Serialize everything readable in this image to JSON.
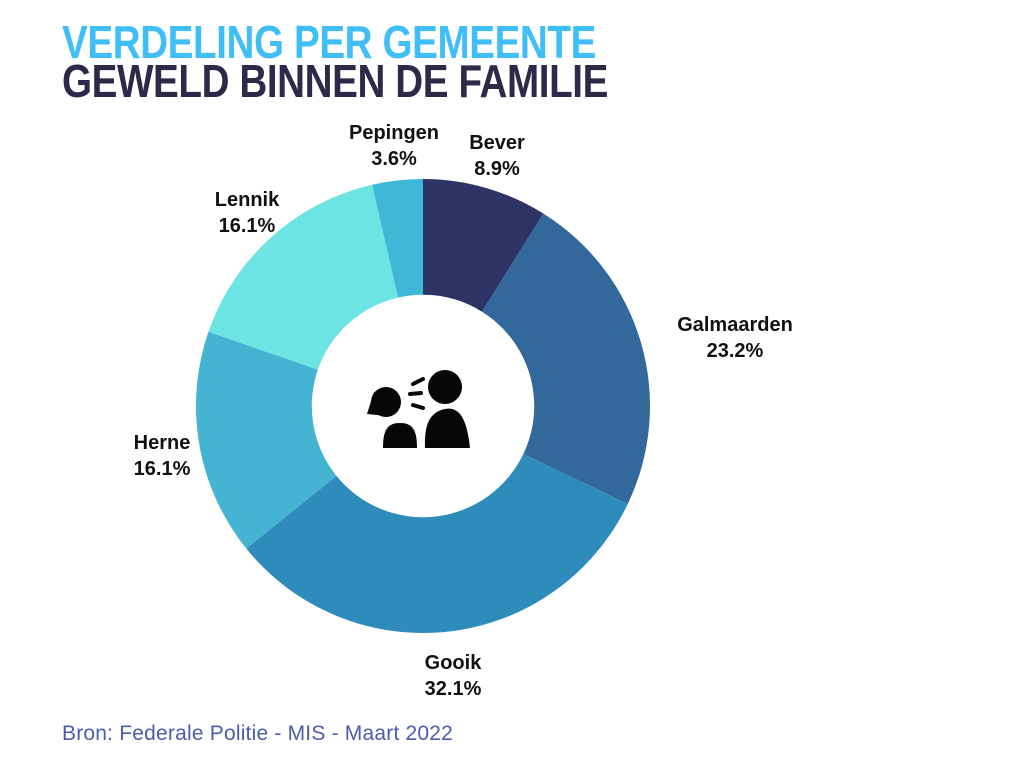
{
  "header": {
    "title_line1": "VERDELING PER GEMEENTE",
    "title_line2": "GEWELD BINNEN DE FAMILIE",
    "title_line1_color": "#3FBEF8",
    "title_line2_color": "#2E2849"
  },
  "chart_data": {
    "type": "pie",
    "subtype": "donut",
    "title": "Verdeling per gemeente — Geweld binnen de familie",
    "unit": "%",
    "start_angle_deg": 0,
    "direction": "clockwise",
    "inner_radius_ratio": 0.49,
    "labels_color": "#111111",
    "legend_position": "around-slices",
    "slices": [
      {
        "label": "Bever",
        "value": 8.9,
        "pct_label": "8.9%",
        "color": "#2E3366"
      },
      {
        "label": "Galmaarden",
        "value": 23.2,
        "pct_label": "23.2%",
        "color": "#33689B"
      },
      {
        "label": "Gooik",
        "value": 32.1,
        "pct_label": "32.1%",
        "color": "#2E8CBB"
      },
      {
        "label": "Herne",
        "value": 16.1,
        "pct_label": "16.1%",
        "color": "#45B4D3"
      },
      {
        "label": "Lennik",
        "value": 16.1,
        "pct_label": "16.1%",
        "color": "#6CE4E4"
      },
      {
        "label": "Pepingen",
        "value": 3.6,
        "pct_label": "3.6%",
        "color": "#3FB8D8"
      }
    ],
    "center_icon": "arguing-people-icon"
  },
  "footer": {
    "source": "Bron: Federale Politie - MIS - Maart 2022",
    "color": "#4B5CAA"
  }
}
